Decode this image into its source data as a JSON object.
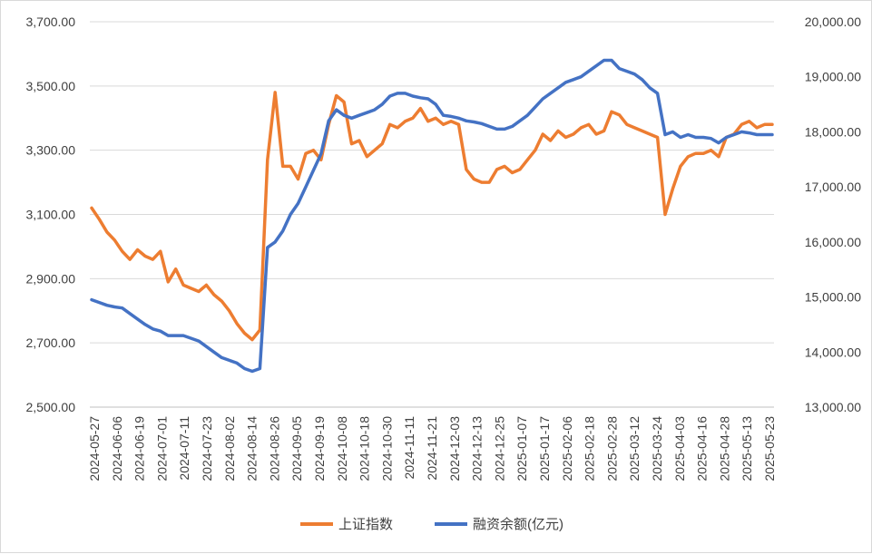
{
  "chart_data": {
    "type": "line",
    "grid": true,
    "legend_position": "bottom",
    "x_tick_labels": [
      "2024-05-27",
      "2024-06-06",
      "2024-06-19",
      "2024-07-01",
      "2024-07-11",
      "2024-07-23",
      "2024-08-02",
      "2024-08-14",
      "2024-08-26",
      "2024-09-05",
      "2024-09-19",
      "2024-10-08",
      "2024-10-18",
      "2024-10-30",
      "2024-11-11",
      "2024-11-21",
      "2024-12-03",
      "2024-12-13",
      "2024-12-25",
      "2025-01-07",
      "2025-01-17",
      "2025-02-06",
      "2025-02-18",
      "2025-02-28",
      "2025-03-12",
      "2025-03-24",
      "2025-04-03",
      "2025-04-16",
      "2025-04-28",
      "2025-05-13",
      "2025-05-23"
    ],
    "y_left": {
      "min": 2500,
      "max": 3700,
      "ticks": [
        "2,500.00",
        "2,700.00",
        "2,900.00",
        "3,100.00",
        "3,300.00",
        "3,500.00",
        "3,700.00"
      ]
    },
    "y_right": {
      "min": 13000,
      "max": 20000,
      "ticks": [
        "13,000.00",
        "14,000.00",
        "15,000.00",
        "16,000.00",
        "17,000.00",
        "18,000.00",
        "19,000.00",
        "20,000.00"
      ]
    },
    "series": [
      {
        "name": "上证指数",
        "axis": "left",
        "color": "#ED7D31",
        "values": [
          3120,
          3085,
          3045,
          3020,
          2985,
          2960,
          2990,
          2970,
          2960,
          2985,
          2890,
          2930,
          2880,
          2870,
          2860,
          2880,
          2850,
          2830,
          2800,
          2760,
          2730,
          2710,
          2740,
          3270,
          3480,
          3250,
          3250,
          3210,
          3290,
          3300,
          3270,
          3380,
          3470,
          3450,
          3320,
          3330,
          3280,
          3300,
          3320,
          3380,
          3370,
          3390,
          3400,
          3430,
          3390,
          3400,
          3380,
          3390,
          3380,
          3240,
          3210,
          3200,
          3200,
          3240,
          3250,
          3230,
          3240,
          3270,
          3300,
          3350,
          3330,
          3360,
          3340,
          3350,
          3370,
          3380,
          3350,
          3360,
          3420,
          3410,
          3380,
          3370,
          3360,
          3350,
          3340,
          3100,
          3180,
          3250,
          3280,
          3290,
          3290,
          3300,
          3280,
          3340,
          3350,
          3380,
          3390,
          3370,
          3380,
          3380
        ]
      },
      {
        "name": "融资余额(亿元)",
        "axis": "right",
        "color": "#4472C4",
        "values": [
          14950,
          14900,
          14850,
          14820,
          14800,
          14700,
          14600,
          14500,
          14420,
          14380,
          14300,
          14300,
          14300,
          14250,
          14200,
          14100,
          14000,
          13900,
          13850,
          13800,
          13700,
          13650,
          13700,
          15900,
          16000,
          16200,
          16500,
          16700,
          17000,
          17300,
          17600,
          18200,
          18400,
          18300,
          18250,
          18300,
          18350,
          18400,
          18500,
          18650,
          18700,
          18700,
          18650,
          18620,
          18600,
          18500,
          18300,
          18280,
          18250,
          18200,
          18180,
          18150,
          18100,
          18050,
          18050,
          18100,
          18200,
          18300,
          18450,
          18600,
          18700,
          18800,
          18900,
          18950,
          19000,
          19100,
          19200,
          19300,
          19300,
          19150,
          19100,
          19050,
          18950,
          18800,
          18700,
          17950,
          18000,
          17900,
          17950,
          17900,
          17900,
          17880,
          17800,
          17900,
          17950,
          18000,
          17980,
          17950,
          17950,
          17950
        ]
      }
    ]
  }
}
